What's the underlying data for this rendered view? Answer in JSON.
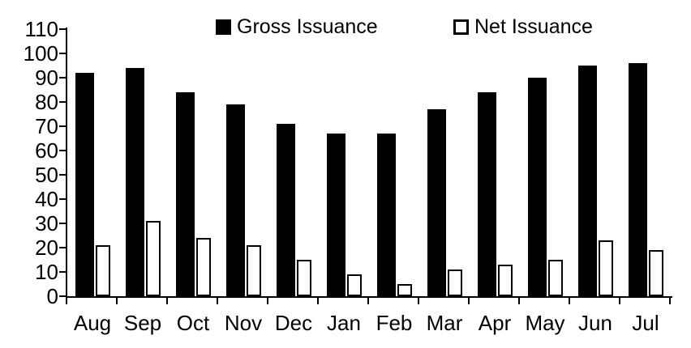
{
  "chart_data": {
    "type": "bar",
    "categories": [
      "Aug",
      "Sep",
      "Oct",
      "Nov",
      "Dec",
      "Jan",
      "Feb",
      "Mar",
      "Apr",
      "May",
      "Jun",
      "Jul"
    ],
    "series": [
      {
        "name": "Gross Issuance",
        "style": "solid",
        "fill": "#000000",
        "border": "#000000",
        "values": [
          92,
          94,
          84,
          79,
          71,
          67,
          67,
          77,
          84,
          90,
          95,
          96
        ]
      },
      {
        "name": "Net Issuance",
        "style": "outline",
        "fill": "#ffffff",
        "border": "#000000",
        "values": [
          21,
          31,
          24,
          21,
          15,
          9,
          5,
          11,
          13,
          15,
          23,
          19
        ]
      }
    ],
    "title": "",
    "xlabel": "",
    "ylabel": "",
    "ylim": [
      0,
      110
    ],
    "ytick_step": 10,
    "yticks": [
      0,
      10,
      20,
      30,
      40,
      50,
      60,
      70,
      80,
      90,
      100,
      110
    ],
    "grid": false,
    "legend_position": "top",
    "background_color": "#ffffff",
    "text_color": "#000000"
  }
}
